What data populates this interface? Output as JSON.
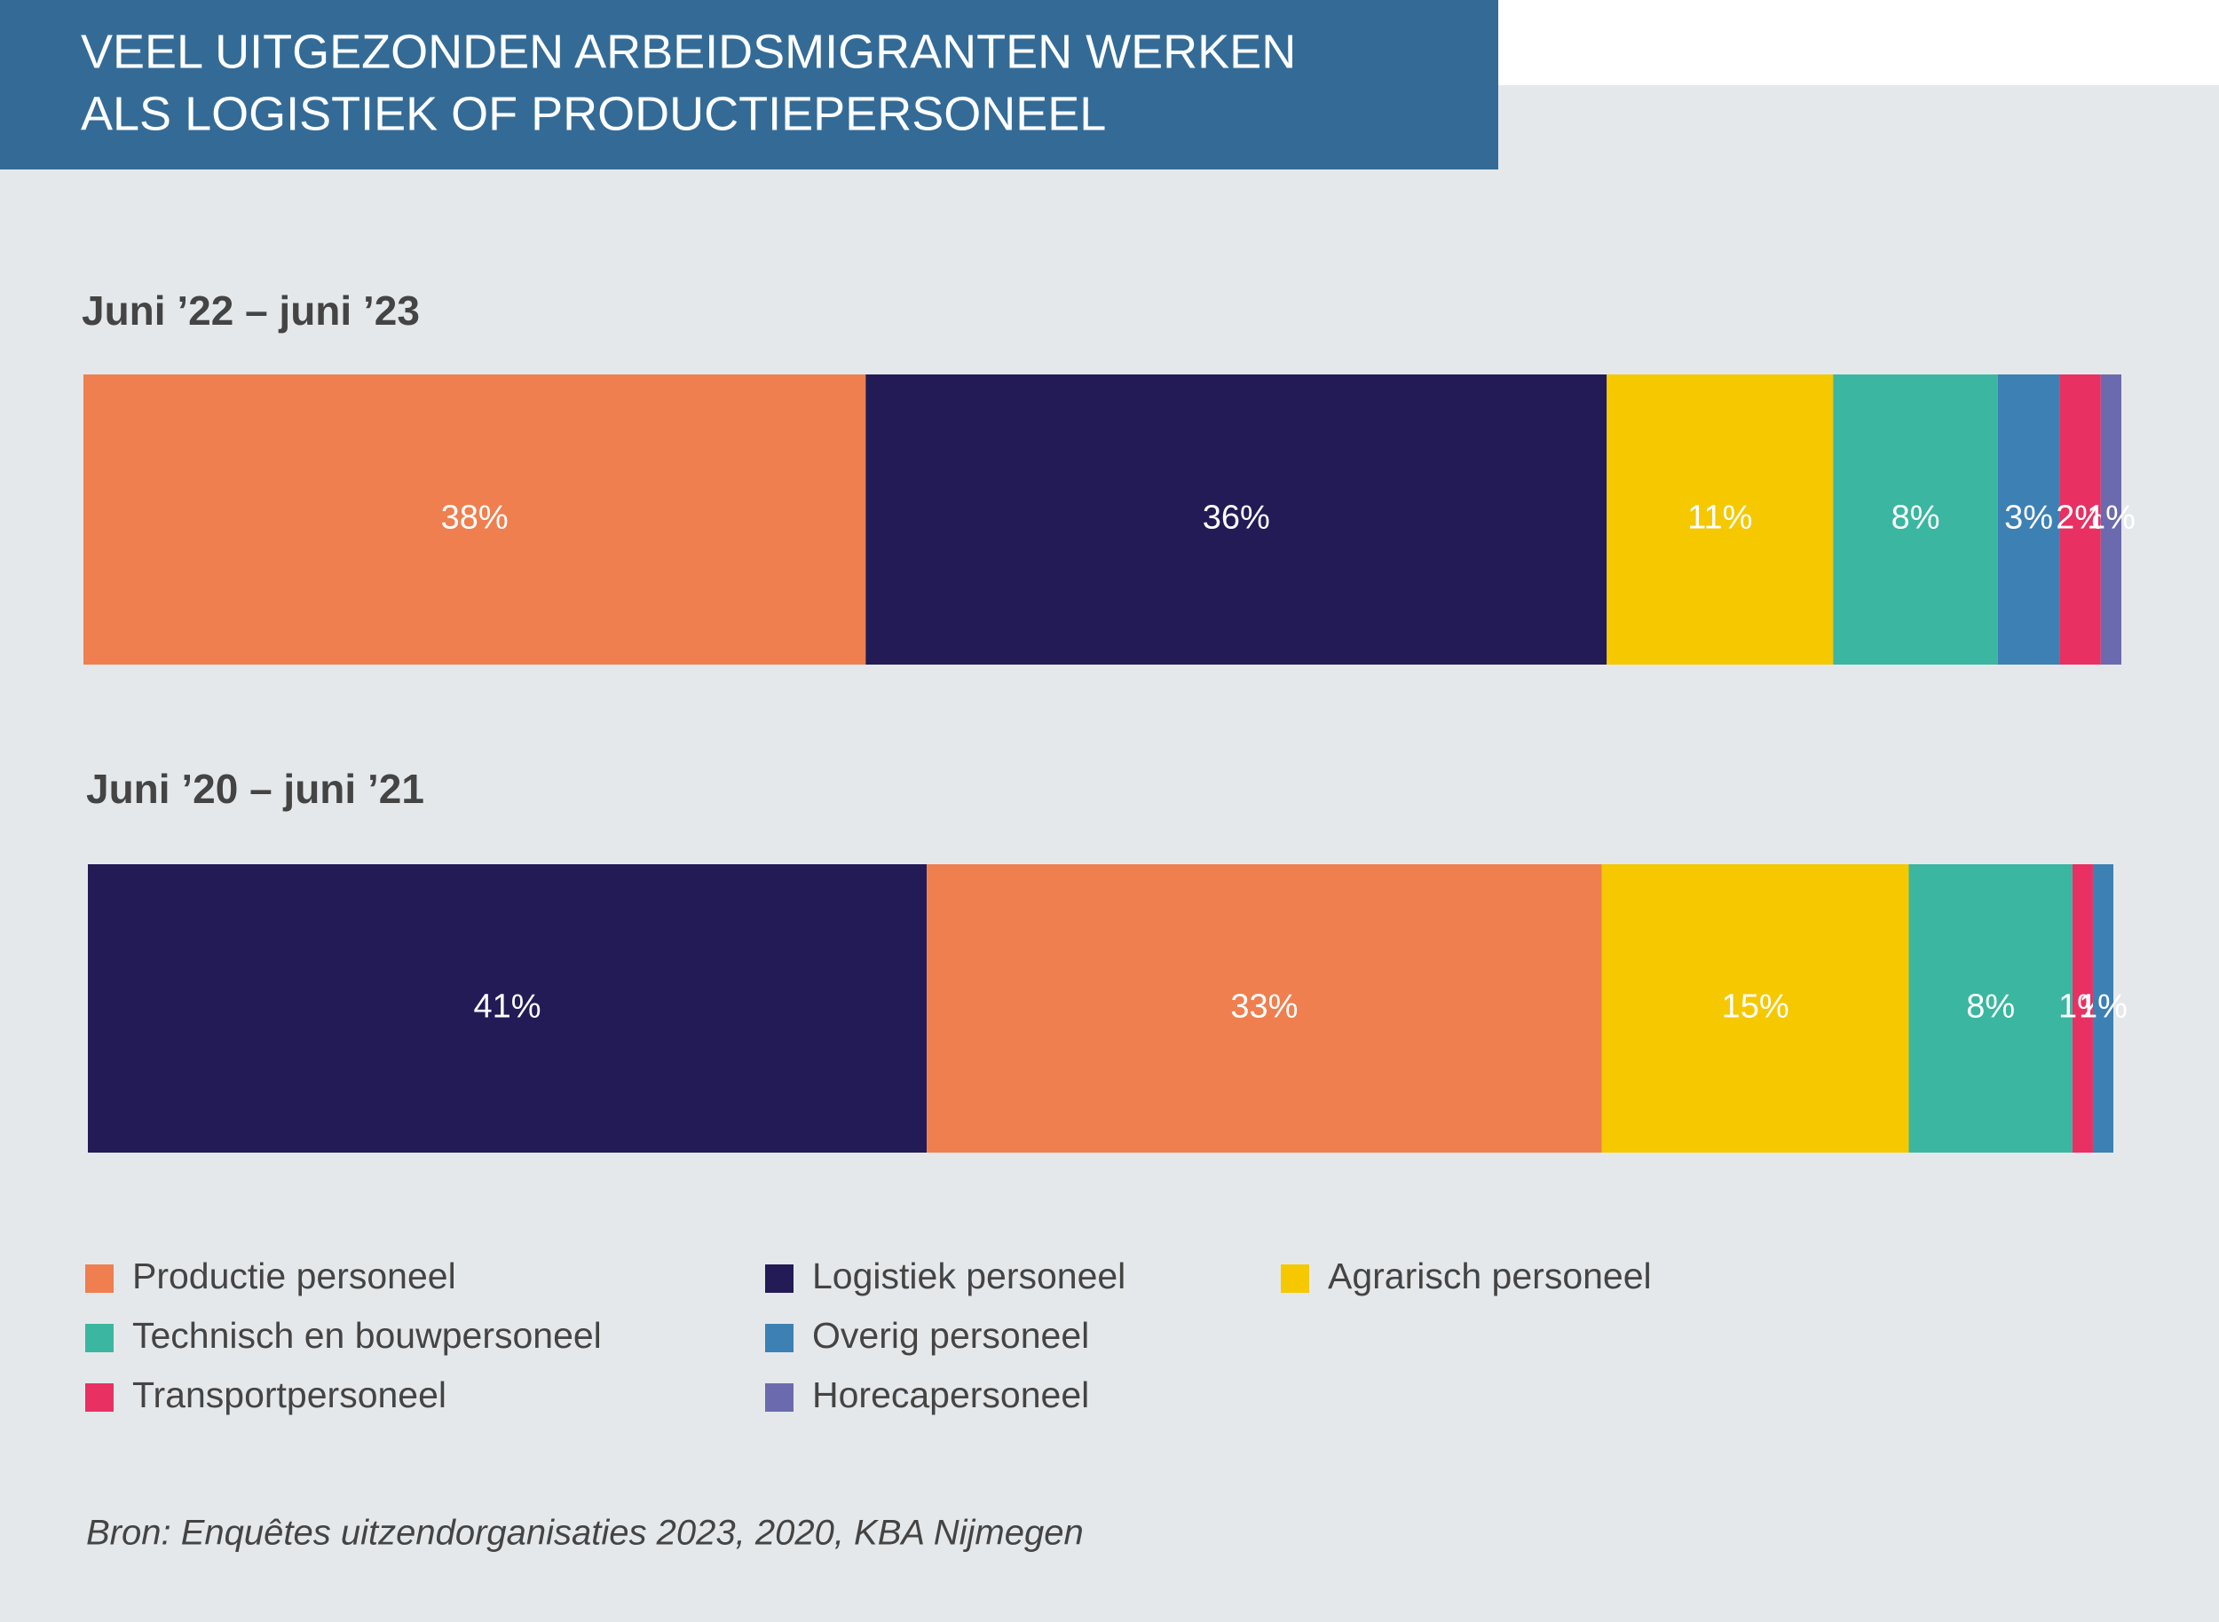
{
  "title": [
    "VEEL UITGEZONDEN ARBEIDSMIGRANTEN WERKEN",
    "ALS LOGISTIEK OF PRODUCTIEPERSONEEL"
  ],
  "source": "Bron: Enquêtes uitzendorganisaties 2023, 2020, KBA Nijmegen",
  "chart_data": [
    {
      "type": "stacked-bar",
      "title": "Juni ’22 – juni ’23",
      "xlim": [
        0,
        99
      ],
      "legend": true,
      "series": [
        {
          "name": "Productie personeel",
          "color": "#ef7f4f",
          "values": [
            38
          ],
          "value_labels": [
            "38%"
          ]
        },
        {
          "name": "Logistiek personeel",
          "color": "#221b56",
          "values": [
            36
          ],
          "value_labels": [
            "36%"
          ]
        },
        {
          "name": "Agrarisch personeel",
          "color": "#f5c800",
          "values": [
            11
          ],
          "value_labels": [
            "11%"
          ]
        },
        {
          "name": "Technisch en bouwpersoneel",
          "color": "#3bb6a0",
          "values": [
            8
          ],
          "value_labels": [
            "8%"
          ]
        },
        {
          "name": "Overig personeel",
          "color": "#3d80b4",
          "values": [
            3
          ],
          "value_labels": [
            "3%"
          ]
        },
        {
          "name": "Transportpersoneel",
          "color": "#e83063",
          "values": [
            2
          ],
          "value_labels": [
            "2%"
          ]
        },
        {
          "name": "Horecapersoneel",
          "color": "#6c6aae",
          "values": [
            1
          ],
          "value_labels": [
            "1%"
          ]
        }
      ]
    },
    {
      "type": "stacked-bar",
      "title": "Juni ’20 – juni ’21",
      "xlim": [
        0,
        99
      ],
      "legend": false,
      "series": [
        {
          "name": "Logistiek personeel",
          "color": "#221b56",
          "values": [
            41
          ],
          "value_labels": [
            "41%"
          ]
        },
        {
          "name": "Productie personeel",
          "color": "#ef7f4f",
          "values": [
            33
          ],
          "value_labels": [
            "33%"
          ]
        },
        {
          "name": "Agrarisch personeel",
          "color": "#f5c800",
          "values": [
            15
          ],
          "value_labels": [
            "15%"
          ]
        },
        {
          "name": "Technisch en bouwpersoneel",
          "color": "#3bb6a0",
          "values": [
            8
          ],
          "value_labels": [
            "8%"
          ]
        },
        {
          "name": "Transportpersoneel",
          "color": "#e83063",
          "values": [
            1
          ],
          "value_labels": [
            "1%"
          ]
        },
        {
          "name": "Overig personeel",
          "color": "#3d80b4",
          "values": [
            1
          ],
          "value_labels": [
            "1%"
          ]
        }
      ]
    }
  ]
}
